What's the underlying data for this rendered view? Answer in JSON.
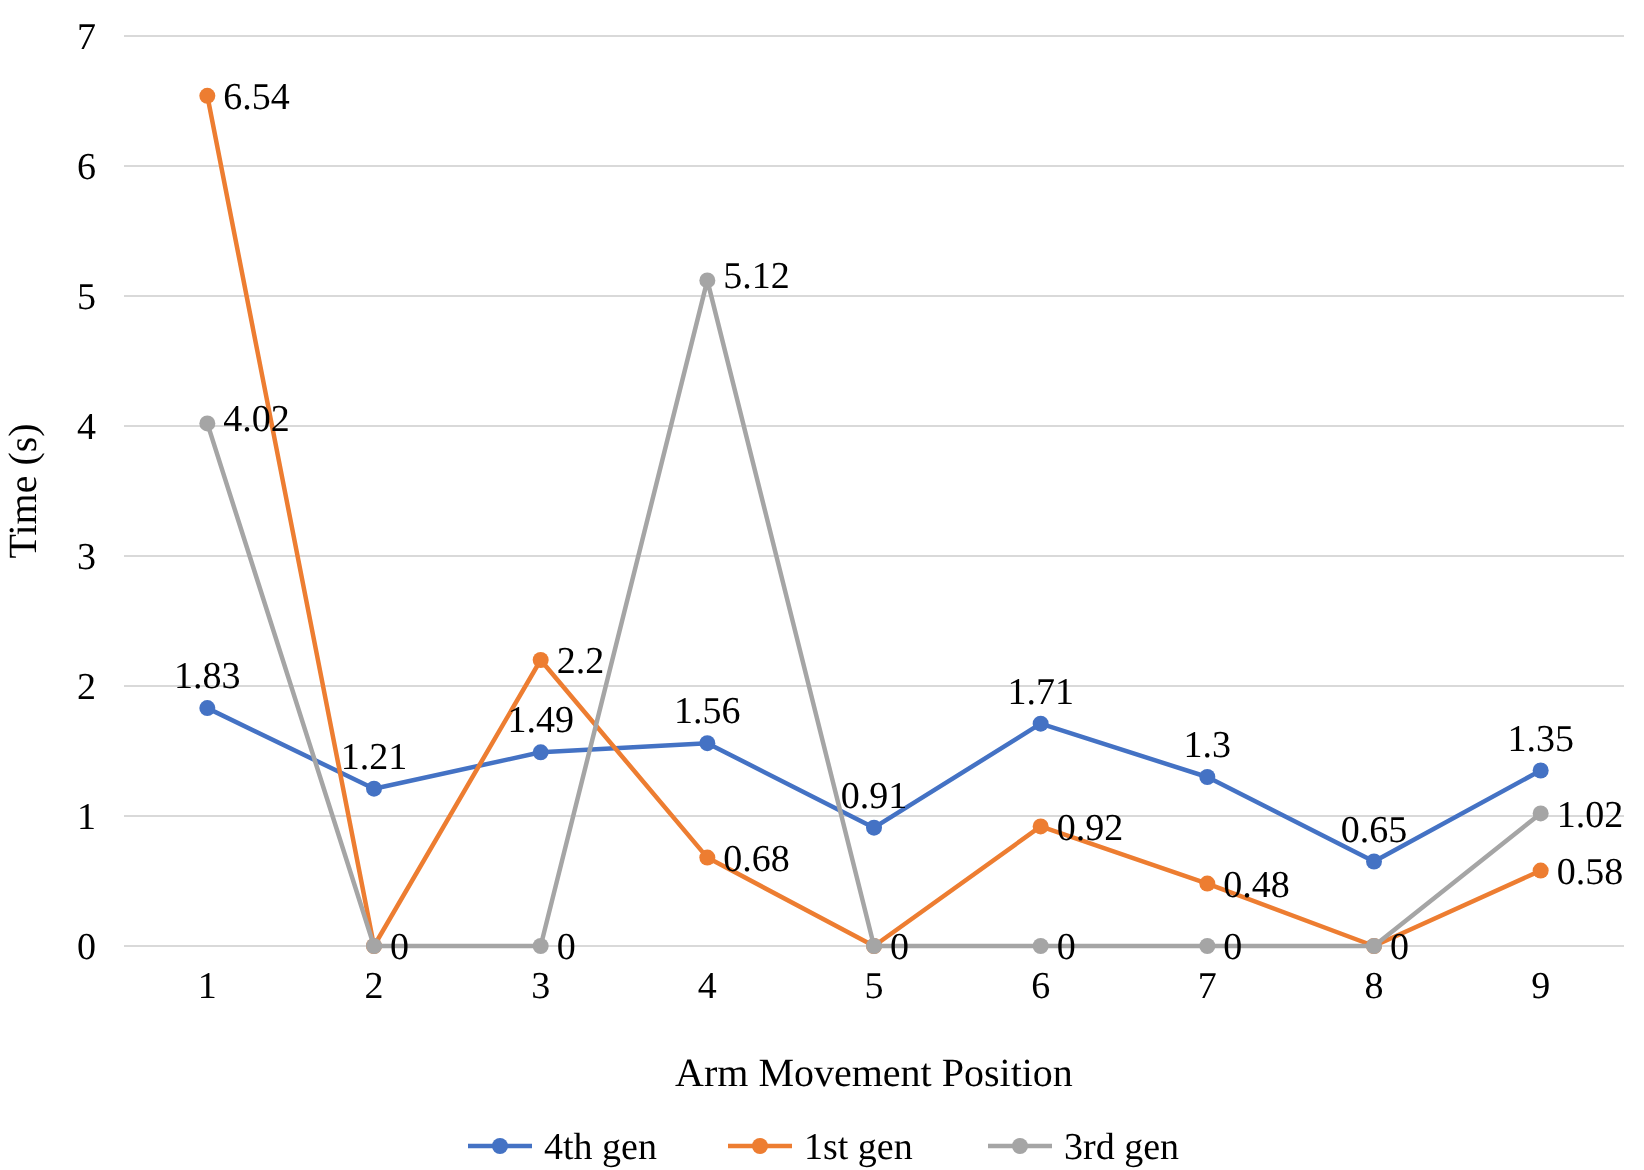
{
  "chart_data": {
    "type": "line",
    "xlabel": "Arm Movement Position",
    "ylabel": "Time (s)",
    "categories": [
      "1",
      "2",
      "3",
      "4",
      "5",
      "6",
      "7",
      "8",
      "9"
    ],
    "series": [
      {
        "name": "4th gen",
        "color": "#4472c4",
        "values": [
          1.83,
          1.21,
          1.49,
          1.56,
          0.91,
          1.71,
          1.3,
          0.65,
          1.35
        ]
      },
      {
        "name": "1st gen",
        "color": "#ed7d31",
        "values": [
          6.54,
          0,
          2.2,
          0.68,
          0,
          0.92,
          0.48,
          0,
          0.58
        ]
      },
      {
        "name": "3rd gen",
        "color": "#a5a5a5",
        "values": [
          4.02,
          0,
          0,
          5.12,
          0,
          0,
          0,
          0,
          1.02
        ],
        "value_labels": [
          "4.02",
          null,
          "0",
          "5.12",
          null,
          "0",
          "0",
          null,
          "1.02"
        ]
      }
    ],
    "ylim": [
      0,
      7
    ],
    "yticks": [
      0,
      1,
      2,
      3,
      4,
      5,
      6,
      7
    ],
    "grid": "y",
    "legend": "bottom",
    "marker": "circle",
    "line_style": "solid",
    "data_labels": true
  }
}
